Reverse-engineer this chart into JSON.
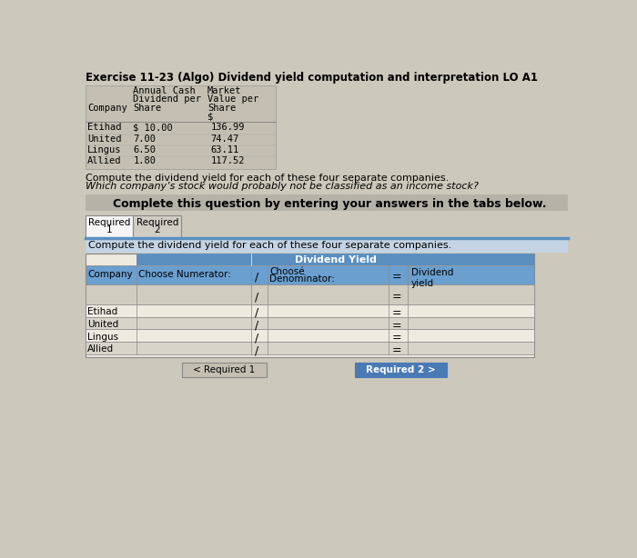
{
  "title": "Exercise 11-23 (Algo) Dividend yield computation and interpretation LO A1",
  "bg": "#ccc8bb",
  "table1_bg": "#c4bfb2",
  "table1_rows": [
    [
      "Etihad",
      "$ 10.00",
      "136.99"
    ],
    [
      "United",
      "7.00",
      "74.47"
    ],
    [
      "Lingus",
      "6.50",
      "63.11"
    ],
    [
      "Allied",
      "1.80",
      "117.52"
    ]
  ],
  "text1": "Compute the dividend yield for each of these four separate companies.",
  "text2": "Which company’s stock would probably not be classified as an income stock?",
  "banner_bg": "#b5b2a8",
  "banner_text": "Complete this question by entering your answers in the tabs below.",
  "tab1": "Required\n1",
  "tab2": "Required\n2",
  "tab_active_bg": "#f5f5f5",
  "tab_inactive_bg": "#d0cdc5",
  "section_bg": "#c4d4e4",
  "section_text": "Compute the dividend yield for each of these four separate companies.",
  "t2_header_bg": "#5a8fc0",
  "t2_header_text": "Dividend Yield",
  "t2_subhdr_bg": "#6a9fd0",
  "t2_col1": "Company",
  "t2_col2": "Choose Numerator:",
  "t2_choose": "Choosé",
  "t2_denom": "Denominator:",
  "t2_last": "Dividend\nyield",
  "t2_companies": [
    "Etihad",
    "United",
    "Lingus",
    "Allied"
  ],
  "t2_bg_light": "#eeeae0",
  "t2_bg_dark": "#d8d4ca",
  "t2_row0_bg": "#d0ccbf",
  "btn1_bg": "#c4bfb2",
  "btn1_text": "< Required 1",
  "btn2_bg": "#4a7ab5",
  "btn2_text": "Required 2 >"
}
